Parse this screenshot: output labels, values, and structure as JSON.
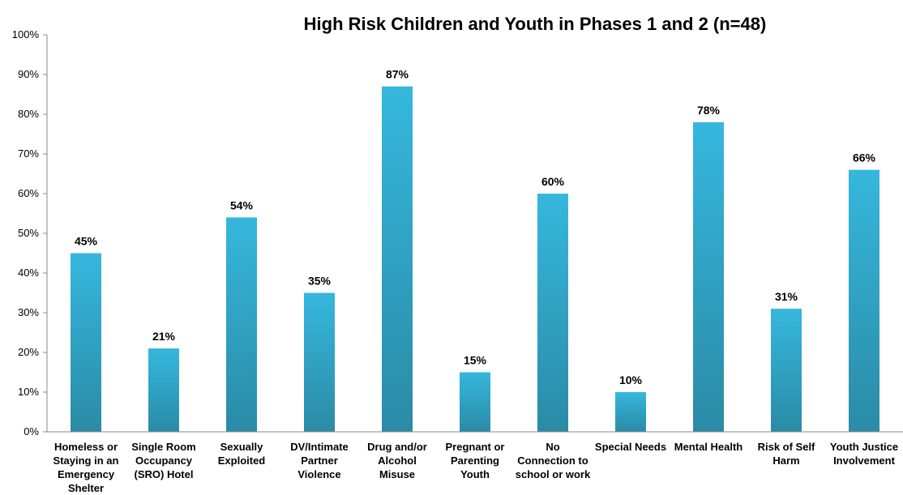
{
  "chart_data": {
    "type": "bar",
    "title": "High Risk Children and Youth in Phases 1 and 2  (n=48)",
    "xlabel": "",
    "ylabel": "",
    "ylim": [
      0,
      100
    ],
    "y_ticks": [
      "0%",
      "10%",
      "20%",
      "30%",
      "40%",
      "50%",
      "60%",
      "70%",
      "80%",
      "90%",
      "100%"
    ],
    "grid": false,
    "legend": "none",
    "categories": [
      "Homeless or Staying in an Emergency Shelter",
      "Single Room Occupancy (SRO) Hotel",
      "Sexually Exploited",
      "DV/Intimate Partner Violence",
      "Drug and/or Alcohol Misuse",
      "Pregnant or Parenting Youth",
      "No Connection to school or work",
      "Special Needs",
      "Mental Health",
      "Risk of Self Harm",
      "Youth Justice Involvement"
    ],
    "category_lines": [
      [
        "Homeless or",
        "Staying in an",
        "Emergency",
        "Shelter"
      ],
      [
        "Single Room",
        "Occupancy",
        "(SRO) Hotel"
      ],
      [
        "Sexually",
        "Exploited"
      ],
      [
        "DV/Intimate",
        "Partner",
        "Violence"
      ],
      [
        "Drug and/or",
        "Alcohol",
        "Misuse"
      ],
      [
        "Pregnant or",
        "Parenting",
        "Youth"
      ],
      [
        "No",
        "Connection to",
        "school or work"
      ],
      [
        "Special Needs"
      ],
      [
        "Mental Health"
      ],
      [
        "Risk of Self",
        "Harm"
      ],
      [
        "Youth Justice",
        "Involvement"
      ]
    ],
    "values": [
      45,
      21,
      54,
      35,
      87,
      15,
      60,
      10,
      78,
      31,
      66
    ],
    "value_labels": [
      "45%",
      "21%",
      "54%",
      "35%",
      "87%",
      "15%",
      "60%",
      "10%",
      "78%",
      "31%",
      "66%"
    ],
    "colors": {
      "bar_top": "#36b7dd",
      "bar_bottom": "#2a8ba6",
      "axis": "#888888"
    }
  }
}
